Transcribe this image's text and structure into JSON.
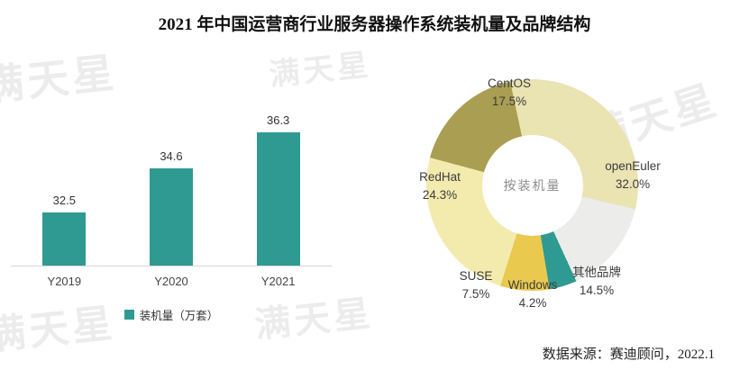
{
  "title": "2021 年中国运营商行业服务器操作系统装机量及品牌结构",
  "source": "数据来源：赛迪顾问，2022.1",
  "watermark": {
    "text": "满天星"
  },
  "colors": {
    "bar": "#2f9a92",
    "axis": "#d6d6d6"
  },
  "chart_data": [
    {
      "type": "bar",
      "title": "",
      "categories": [
        "Y2019",
        "Y2020",
        "Y2021"
      ],
      "values": [
        32.5,
        34.6,
        36.3
      ],
      "value_labels": [
        "32.5",
        "34.6",
        "36.3"
      ],
      "legend": "装机量（万套）",
      "ylim": [
        30,
        37
      ],
      "bar_color": "#2f9a92",
      "grid": false
    },
    {
      "type": "pie",
      "subtype": "donut",
      "center_label": "按装机量",
      "start_angle": 285,
      "slices": [
        {
          "name": "CentOS",
          "value": 17.5,
          "pct": "17.5%",
          "color": "#a99e52"
        },
        {
          "name": "openEuler",
          "value": 32.0,
          "pct": "32.0%",
          "color": "#eae3b2"
        },
        {
          "name": "其他品牌",
          "value": 14.5,
          "pct": "14.5%",
          "color": "#ececea"
        },
        {
          "name": "Windows",
          "value": 4.2,
          "pct": "4.2%",
          "color": "#2f9a92"
        },
        {
          "name": "SUSE",
          "value": 7.5,
          "pct": "7.5%",
          "color": "#e9c94e"
        },
        {
          "name": "RedHat",
          "value": 24.3,
          "pct": "24.3%",
          "color": "#f3ebae"
        }
      ],
      "legend_position": "none"
    }
  ]
}
